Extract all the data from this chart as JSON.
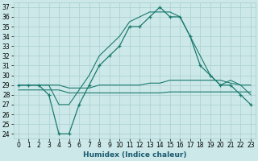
{
  "xlabel": "Humidex (Indice chaleur)",
  "x": [
    0,
    1,
    2,
    3,
    4,
    5,
    6,
    7,
    8,
    9,
    10,
    11,
    12,
    13,
    14,
    15,
    16,
    17,
    18,
    19,
    20,
    21,
    22,
    23
  ],
  "humidex": [
    29,
    29,
    29,
    28,
    24,
    24,
    27,
    29,
    31,
    32,
    33,
    35,
    35,
    36,
    37,
    36,
    36,
    34,
    31,
    30,
    29,
    29,
    28,
    27
  ],
  "smooth_upper": [
    29,
    29,
    29,
    29,
    27,
    27,
    28.5,
    30,
    32,
    33,
    34,
    35.5,
    36,
    36.5,
    36.5,
    36.5,
    36,
    34,
    32,
    30,
    29,
    29.5,
    29,
    28
  ],
  "line_mid1": [
    29,
    29,
    29,
    29,
    29,
    28.7,
    28.7,
    28.7,
    29,
    29,
    29,
    29,
    29,
    29.2,
    29.2,
    29.5,
    29.5,
    29.5,
    29.5,
    29.5,
    29.5,
    29.2,
    29,
    29
  ],
  "line_mid2": [
    28.5,
    28.5,
    28.5,
    28.5,
    28.5,
    28.2,
    28.2,
    28.2,
    28.2,
    28.2,
    28.2,
    28.2,
    28.2,
    28.2,
    28.2,
    28.3,
    28.3,
    28.3,
    28.3,
    28.3,
    28.3,
    28.3,
    28.3,
    28.3
  ],
  "line_color": "#1a7a6e",
  "bg_color": "#cce8e8",
  "grid_color": "#aacfcf",
  "ylim_min": 23.5,
  "ylim_max": 37.5,
  "yticks": [
    24,
    25,
    26,
    27,
    28,
    29,
    30,
    31,
    32,
    33,
    34,
    35,
    36,
    37
  ],
  "xticks": [
    0,
    1,
    2,
    3,
    4,
    5,
    6,
    7,
    8,
    9,
    10,
    11,
    12,
    13,
    14,
    15,
    16,
    17,
    18,
    19,
    20,
    21,
    22,
    23
  ],
  "xlabel_fontsize": 6.5,
  "tick_fontsize": 5.5
}
